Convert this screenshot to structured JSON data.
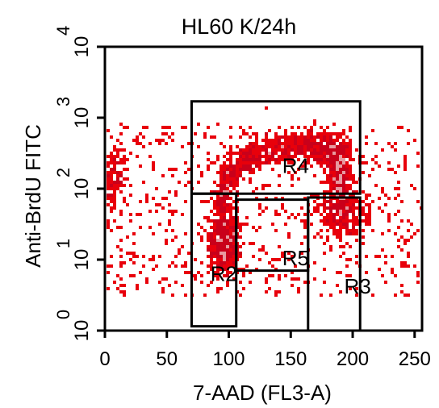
{
  "chart_data": {
    "type": "scatter",
    "subtype": "flow-cytometry dot plot (density)",
    "title": "HL60 K/24h",
    "xlabel": "7-AAD (FL3-A)",
    "ylabel": "Anti-BrdU FITC",
    "x_axis": {
      "scale": "linear",
      "range": [
        0,
        256
      ],
      "ticks": [
        0,
        50,
        100,
        150,
        200,
        250
      ],
      "tick_labels": [
        "0",
        "50",
        "100",
        "150",
        "200",
        "250"
      ]
    },
    "y_axis": {
      "scale": "log",
      "range": [
        1,
        10000
      ],
      "tick_labels": [
        {
          "base": "10",
          "exp": "0",
          "value": 1
        },
        {
          "base": "10",
          "exp": "1",
          "value": 10
        },
        {
          "base": "10",
          "exp": "2",
          "value": 100
        },
        {
          "base": "10",
          "exp": "3",
          "value": 1000
        },
        {
          "base": "10",
          "exp": "4",
          "value": 10000
        }
      ]
    },
    "grid": false,
    "colors": {
      "sparse": "#e8000b",
      "dense": "#c9001a",
      "core": "#e89aa0",
      "frame": "#000000"
    },
    "density_populations": [
      {
        "kind": "arc",
        "desc": "S-phase BrdU+ arc",
        "path": [
          [
            95,
            60
          ],
          [
            100,
            160
          ],
          [
            120,
            300
          ],
          [
            150,
            380
          ],
          [
            175,
            390
          ],
          [
            190,
            320
          ],
          [
            188,
            150
          ],
          [
            192,
            70
          ]
        ],
        "y_spread": 0.12,
        "count": 1300
      },
      {
        "kind": "blob",
        "center": [
          96,
          18
        ],
        "sx": 6,
        "sy": 0.22,
        "count": 520
      },
      {
        "kind": "blob",
        "center": [
          190,
          45
        ],
        "sx": 10,
        "sy": 0.18,
        "count": 300
      },
      {
        "kind": "blob",
        "center": [
          4,
          140
        ],
        "sx": 6,
        "sy": 0.25,
        "count": 160
      },
      {
        "kind": "scatter",
        "xrange": [
          0,
          256
        ],
        "yrange": [
          3,
          800
        ],
        "count": 700
      }
    ],
    "gates": [
      {
        "name": "R2",
        "x": [
          70,
          106
        ],
        "y": [
          1.15,
          85
        ],
        "label_at": [
          96,
          6
        ]
      },
      {
        "name": "R3",
        "x": [
          164,
          206
        ],
        "y": [
          1.0,
          75
        ],
        "label_at": [
          204,
          4
        ]
      },
      {
        "name": "R4",
        "x": [
          70,
          206
        ],
        "y": [
          85,
          1700
        ],
        "label_at": [
          154,
          200
        ]
      },
      {
        "name": "R5",
        "x": [
          106,
          164
        ],
        "y": [
          7,
          70
        ],
        "label_at": [
          154,
          10
        ]
      }
    ]
  }
}
